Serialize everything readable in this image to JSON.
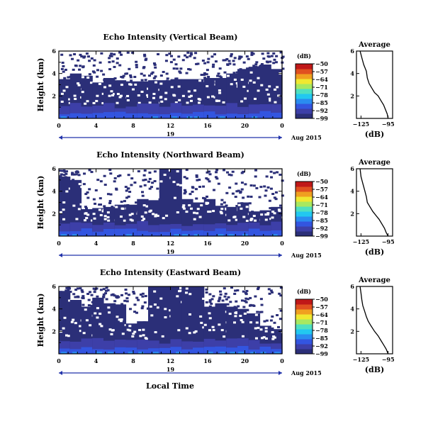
{
  "figure": {
    "xlabel": "Local Time",
    "date_label": "Aug 2015",
    "day_label": "19",
    "colorbar_unit": "(dB)",
    "avg_title": "Average",
    "avg_xlabel": "(dB)"
  },
  "colors": {
    "scale": [
      "#2b2f78",
      "#3d3fa8",
      "#3355e0",
      "#2a8cf0",
      "#22c8f0",
      "#4fe0c0",
      "#a8e860",
      "#f0e830",
      "#f0a020",
      "#e05020",
      "#c01818"
    ]
  },
  "chart_data": [
    {
      "type": "heatmap",
      "title": "Echo Intensity (Vertical Beam)",
      "ylabel": "Height (km)",
      "xlabel": "",
      "x_ticks": [
        "0",
        "4",
        "8",
        "12",
        "16",
        "20",
        "0"
      ],
      "y_ticks": [
        "6",
        "4",
        "2"
      ],
      "xlim": [
        0,
        24
      ],
      "ylim": [
        0,
        6
      ],
      "colorbar": {
        "label": "(dB)",
        "ticks": [
          "-50",
          "-57",
          "-64",
          "-71",
          "-78",
          "-85",
          "-92",
          "-99"
        ],
        "range": [
          -99,
          -50
        ]
      },
      "top_height_km": [
        3.5,
        4.0,
        3.8,
        3.2,
        3.6,
        3.4,
        3.3,
        3.3,
        3.4,
        3.4,
        3.5,
        3.5,
        3.5,
        3.6,
        3.6,
        4.0,
        4.4,
        4.6,
        4.8,
        4.4
      ],
      "average": {
        "title": "Average",
        "xlabel": "(dB)",
        "x_ticks": [
          "-125",
          "-95"
        ],
        "y_ticks": [
          "6",
          "4",
          "2"
        ],
        "xlim": [
          -130,
          -90
        ],
        "ylim": [
          0,
          6
        ],
        "x": [
          -126,
          -124,
          -122,
          -119,
          -118,
          -116,
          -113,
          -110,
          -106,
          -103,
          -100,
          -98,
          -96,
          -95
        ],
        "y": [
          6.0,
          5.4,
          4.8,
          4.2,
          3.6,
          3.1,
          2.7,
          2.3,
          2.0,
          1.6,
          1.2,
          0.8,
          0.4,
          0.0
        ]
      }
    },
    {
      "type": "heatmap",
      "title": "Echo Intensity (Northward Beam)",
      "ylabel": "Height (km)",
      "xlabel": "",
      "x_ticks": [
        "0",
        "4",
        "8",
        "12",
        "16",
        "20",
        "0"
      ],
      "y_ticks": [
        "6",
        "4",
        "2"
      ],
      "xlim": [
        0,
        24
      ],
      "ylim": [
        0,
        6
      ],
      "colorbar": {
        "label": "(dB)",
        "ticks": [
          "-50",
          "-57",
          "-64",
          "-71",
          "-78",
          "-85",
          "-92",
          "-99"
        ],
        "range": [
          -99,
          -50
        ]
      },
      "top_height_km": [
        5.3,
        5.0,
        2.4,
        2.5,
        2.6,
        2.8,
        2.8,
        3.3,
        3.2,
        6.0,
        6.0,
        3.3,
        3.0,
        3.3,
        2.7,
        2.6,
        3.0,
        2.2,
        2.3,
        2.6
      ],
      "average": {
        "title": "Average",
        "xlabel": "(dB)",
        "x_ticks": [
          "-125",
          "-95"
        ],
        "y_ticks": [
          "6",
          "4",
          "2"
        ],
        "xlim": [
          -130,
          -90
        ],
        "ylim": [
          0,
          6
        ],
        "x": [
          -126,
          -125,
          -123,
          -121,
          -119,
          -118,
          -115,
          -112,
          -108,
          -105,
          -102,
          -99,
          -97,
          -95
        ],
        "y": [
          6.0,
          5.3,
          4.7,
          4.1,
          3.5,
          3.0,
          2.6,
          2.2,
          1.8,
          1.5,
          1.1,
          0.7,
          0.3,
          0.0
        ]
      }
    },
    {
      "type": "heatmap",
      "title": "Echo Intensity (Eastward Beam)",
      "ylabel": "Height (km)",
      "xlabel": "Local Time",
      "x_ticks": [
        "0",
        "4",
        "8",
        "12",
        "16",
        "20",
        "0"
      ],
      "y_ticks": [
        "6",
        "4",
        "2"
      ],
      "xlim": [
        0,
        24
      ],
      "ylim": [
        0,
        6
      ],
      "colorbar": {
        "label": "(dB)",
        "ticks": [
          "-50",
          "-57",
          "-64",
          "-71",
          "-78",
          "-85",
          "-92",
          "-99"
        ],
        "range": [
          -99,
          -50
        ]
      },
      "top_height_km": [
        5.6,
        4.8,
        4.2,
        5.0,
        4.5,
        4.4,
        2.7,
        2.9,
        6.0,
        6.0,
        6.0,
        6.0,
        6.0,
        4.2,
        4.5,
        4.2,
        4.0,
        3.6,
        2.5,
        2.2
      ],
      "average": {
        "title": "Average",
        "xlabel": "(dB)",
        "x_ticks": [
          "-125",
          "-95"
        ],
        "y_ticks": [
          "6",
          "4",
          "2"
        ],
        "xlim": [
          -130,
          -90
        ],
        "ylim": [
          0,
          6
        ],
        "x": [
          -126,
          -125,
          -124,
          -123,
          -121,
          -119,
          -117,
          -114,
          -110,
          -106,
          -103,
          -100,
          -97,
          -95
        ],
        "y": [
          6.0,
          5.4,
          4.8,
          4.3,
          3.8,
          3.3,
          2.9,
          2.5,
          2.0,
          1.6,
          1.2,
          0.8,
          0.4,
          0.0
        ]
      }
    }
  ]
}
